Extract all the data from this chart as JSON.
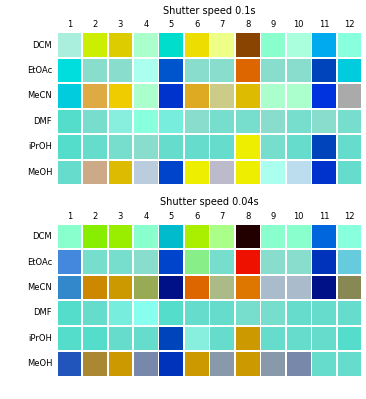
{
  "title1": "Shutter speed 0.1s",
  "title2": "Shutter speed 0.04s",
  "col_labels": [
    "1",
    "2",
    "3",
    "4",
    "5",
    "6",
    "7",
    "8",
    "9",
    "10",
    "11",
    "12"
  ],
  "row_labels": [
    "DCM",
    "EtOAc",
    "MeCN",
    "DMF",
    "iPrOH",
    "MeOH"
  ],
  "fig_bg": "#ffffff",
  "panel_bg": "#000000",
  "grid1": [
    [
      "#aaeedd",
      "#ccee00",
      "#ddcc00",
      "#aaffcc",
      "#00ddcc",
      "#eedd00",
      "#eeff88",
      "#884400",
      "#88ffcc",
      "#aaffdd",
      "#00aaee",
      "#88ffdd"
    ],
    [
      "#00dddd",
      "#88ddcc",
      "#88ddcc",
      "#aaffee",
      "#0055cc",
      "#88ddcc",
      "#88ddcc",
      "#dd6600",
      "#88ddcc",
      "#88ddcc",
      "#0044bb",
      "#00ccdd"
    ],
    [
      "#00ccdd",
      "#ddaa44",
      "#eecc00",
      "#aaffcc",
      "#0033cc",
      "#ddaa22",
      "#cccc88",
      "#ddbb00",
      "#aaffcc",
      "#aaffcc",
      "#0033dd",
      "#aaaaaa"
    ],
    [
      "#55ddcc",
      "#77ddcc",
      "#88eedd",
      "#88ffdd",
      "#77eedd",
      "#88ddcc",
      "#77ddcc",
      "#77ddcc",
      "#88ddcc",
      "#77ddcc",
      "#88ddcc",
      "#77ddcc"
    ],
    [
      "#55ddcc",
      "#66ddcc",
      "#77ddcc",
      "#88ddcc",
      "#66ddcc",
      "#66ddcc",
      "#66ddcc",
      "#eeee00",
      "#77ddcc",
      "#66ddcc",
      "#0044bb",
      "#66ddcc"
    ],
    [
      "#66ddcc",
      "#ccaa88",
      "#ddbb00",
      "#bbccdd",
      "#0044cc",
      "#eeee00",
      "#bbbbcc",
      "#eeee00",
      "#aaffee",
      "#bbddee",
      "#0033cc",
      "#66ddcc"
    ]
  ],
  "grid2": [
    [
      "#88ffcc",
      "#88ee00",
      "#99ee00",
      "#88ffcc",
      "#00bbcc",
      "#aaee00",
      "#aaff88",
      "#220000",
      "#88ffcc",
      "#88ffcc",
      "#0066dd",
      "#88ffdd"
    ],
    [
      "#4488dd",
      "#77ddcc",
      "#77ddcc",
      "#88ddcc",
      "#0044cc",
      "#88ee88",
      "#77ddcc",
      "#ee1100",
      "#88ddcc",
      "#88ddcc",
      "#0033bb",
      "#66ccdd"
    ],
    [
      "#3388cc",
      "#cc8800",
      "#cc9900",
      "#99aa55",
      "#001188",
      "#dd6600",
      "#aabb88",
      "#dd7700",
      "#aabbcc",
      "#aabbcc",
      "#001188",
      "#888855"
    ],
    [
      "#55ddcc",
      "#66ddcc",
      "#77eedd",
      "#88ffee",
      "#55ddcc",
      "#66ddcc",
      "#66ddcc",
      "#77ddcc",
      "#77ddcc",
      "#66ddcc",
      "#66ddcc",
      "#66ddcc"
    ],
    [
      "#55ddcc",
      "#55ddcc",
      "#66ddcc",
      "#66ddcc",
      "#0044bb",
      "#88eedd",
      "#66ddcc",
      "#cc9900",
      "#66ddcc",
      "#66ddcc",
      "#66ddcc",
      "#55ddcc"
    ],
    [
      "#2255bb",
      "#aa8833",
      "#cc9900",
      "#7788aa",
      "#0033bb",
      "#cc9900",
      "#8899aa",
      "#cc9900",
      "#8899aa",
      "#7788aa",
      "#66ddcc",
      "#66ddcc"
    ]
  ],
  "label_fontsize": 6,
  "title_fontsize": 7,
  "figsize": [
    3.66,
    3.99
  ],
  "dpi": 100
}
